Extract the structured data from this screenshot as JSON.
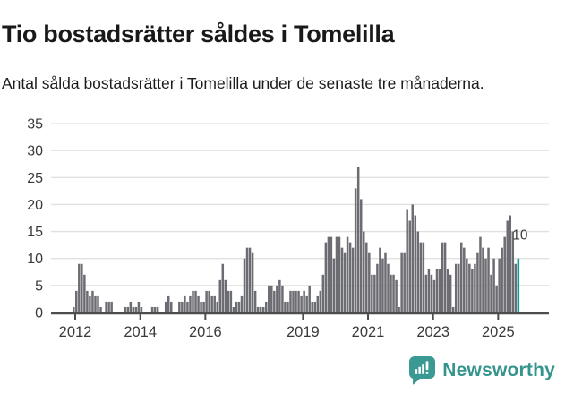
{
  "header": {
    "title": "Tio bostadsrätter såldes i Tomelilla",
    "subtitle": "Antal sålda bostadsrätter i Tomelilla under de senaste tre månaderna."
  },
  "chart_data": {
    "type": "bar",
    "title": "Tio bostadsrätter såldes i Tomelilla",
    "subtitle": "Antal sålda bostadsrätter i Tomelilla under de senaste tre månaderna.",
    "unit": "månad",
    "start_month": "2012-01",
    "end_month": "2025-09",
    "values": [
      1,
      4,
      9,
      9,
      7,
      4,
      3,
      4,
      3,
      3,
      1,
      0,
      2,
      2,
      2,
      0,
      0,
      0,
      0,
      1,
      1,
      2,
      1,
      1,
      2,
      1,
      0,
      0,
      0,
      1,
      1,
      1,
      0,
      0,
      2,
      3,
      2,
      0,
      0,
      2,
      2,
      3,
      2,
      3,
      4,
      4,
      3,
      2,
      2,
      4,
      4,
      3,
      3,
      2,
      6,
      9,
      6,
      4,
      4,
      1,
      2,
      2,
      3,
      10,
      12,
      12,
      11,
      4,
      1,
      1,
      1,
      2,
      5,
      5,
      4,
      5,
      6,
      5,
      2,
      2,
      4,
      4,
      4,
      4,
      3,
      4,
      3,
      5,
      2,
      2,
      3,
      4,
      7,
      13,
      14,
      14,
      10,
      14,
      14,
      12,
      11,
      14,
      13,
      12,
      23,
      27,
      21,
      15,
      13,
      11,
      7,
      7,
      9,
      12,
      10,
      11,
      9,
      7,
      7,
      6,
      1,
      11,
      11,
      19,
      17,
      20,
      18,
      15,
      13,
      13,
      7,
      8,
      7,
      6,
      8,
      8,
      13,
      13,
      8,
      7,
      1,
      9,
      9,
      13,
      12,
      10,
      9,
      8,
      9,
      11,
      14,
      12,
      10,
      12,
      7,
      10,
      5,
      10,
      12,
      14,
      17,
      18,
      15,
      9,
      10
    ],
    "highlight": {
      "index": 164,
      "value": 10,
      "label": "10"
    },
    "ylim": [
      0,
      35
    ],
    "y_ticks": [
      0,
      5,
      10,
      15,
      20,
      25,
      30,
      35
    ],
    "x_tick_labels": [
      "2012",
      "2014",
      "2016",
      "2019",
      "2021",
      "2023",
      "2025"
    ],
    "x_tick_months": [
      0,
      24,
      48,
      84,
      108,
      132,
      156
    ],
    "grid": true,
    "legend": "none",
    "colors": {
      "bar": "#6c6c73",
      "highlight": "#109b94",
      "grid": "#e0e0e0",
      "axis": "#4d4d4d",
      "tick_label": "#3a3a3a",
      "value_label": "#3c3c3c"
    }
  },
  "footer": {
    "brand": "Newsworthy",
    "brand_color": "#35958e",
    "logo_icon": "speech-bubble-bar-chart-exclamation"
  }
}
